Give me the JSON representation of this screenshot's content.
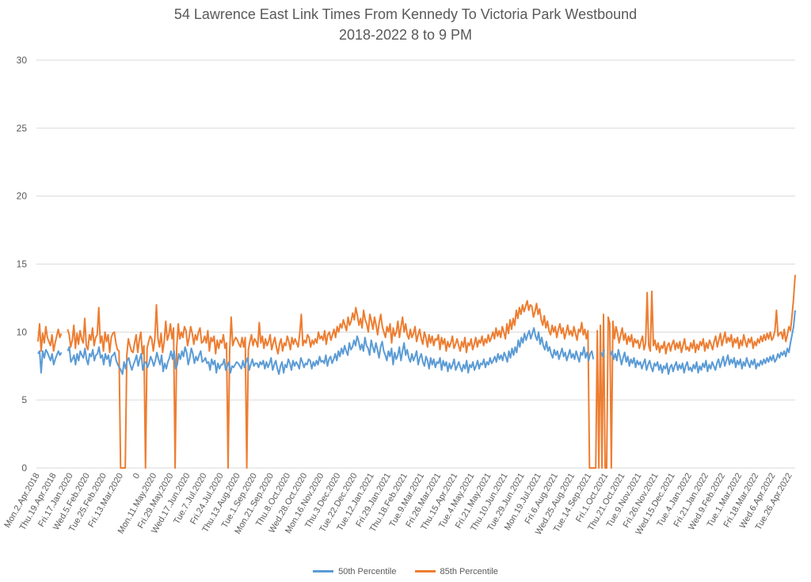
{
  "chart_data": {
    "type": "line",
    "title": "54 Lawrence East Link Times From Kennedy To Victoria Park Westbound",
    "subtitle": "2018-2022 8 to 9 PM",
    "ylim": [
      0,
      30
    ],
    "yticks": [
      0,
      5,
      10,
      15,
      20,
      25,
      30
    ],
    "grid": true,
    "legend_position": "bottom",
    "x_tick_labels": [
      "Mon.2.Apr.2018",
      "Thu.19.Apr.2018",
      "Fri.17.Jan.2020",
      "Wed.5.Feb.2020",
      "Tue.25.Feb.2020",
      "Fri.13.Mar.2020",
      "0",
      "Mon.11.May.2020",
      "Fri.29.May.2020",
      "Wed.17.Jun.2020",
      "Tue.7.Jul.2020",
      "Fri.24.Jul.2020",
      "Thu.13.Aug.2020",
      "Tue.1.Sep.2020",
      "Mon.21.Sep.2020",
      "Thu.8.Oct.2020",
      "Wed.28.Oct.2020",
      "Mon.16.Nov.2020",
      "Thu.3.Dec.2020",
      "Tue.22.Dec.2020",
      "Tue.12.Jan.2021",
      "Fri.29.Jan.2021",
      "Thu.18.Feb.2021",
      "Tue.9.Mar.2021",
      "Fri.26.Mar.2021",
      "Thu.15.Apr.2021",
      "Tue.4.May.2021",
      "Fri.21.May.2021",
      "Thu.10.Jun.2021",
      "Tue.29.Jun.2021",
      "Mon.19.Jul.2021",
      "Fri.6.Aug.2021",
      "Wed.25.Aug.2021",
      "Tue.14.Sep.2021",
      "Fri.1.Oct.2021",
      "Thu.21.Oct.2021",
      "Tue.9.Nov.2021",
      "Fri.26.Nov.2021",
      "Wed.15.Dec.2021",
      "Tue.4.Jan.2022",
      "Fri.21.Jan.2022",
      "Wed.9.Feb.2022",
      "Tue.1.Mar.2022",
      "Fri.18.Mar.2022",
      "Wed.6.Apr.2022",
      "Tue.26.Apr.2022"
    ],
    "colors": {
      "p50": "#5b9bd5",
      "p85": "#ed7d31"
    },
    "series": [
      {
        "name": "50th Percentile",
        "values": [
          8.4,
          8.6,
          7.0,
          8.6,
          8.1,
          8.7,
          8.5,
          8.2,
          7.9,
          8.4,
          7.6,
          8.0,
          8.3,
          8.6,
          8.3,
          8.5,
          null,
          null,
          null,
          8.6,
          8.9,
          7.8,
          8.0,
          8.3,
          7.6,
          8.4,
          7.9,
          8.6,
          8.3,
          8.1,
          8.8,
          8.0,
          7.6,
          8.4,
          8.2,
          8.7,
          7.9,
          8.3,
          8.4,
          8.9,
          8.1,
          8.3,
          7.6,
          8.4,
          8.0,
          8.3,
          7.5,
          8.2,
          8.3,
          8.5,
          7.9,
          7.6,
          7.4,
          7.2,
          6.9,
          7.8,
          7.3,
          7.9,
          8.1,
          7.6,
          7.2,
          7.6,
          7.9,
          8.3,
          7.5,
          8.0,
          8.4,
          7.2,
          7.7,
          7.8,
          7.4,
          7.7,
          8.2,
          7.9,
          7.5,
          7.9,
          8.5,
          8.0,
          7.6,
          8.3,
          7.1,
          7.7,
          7.3,
          7.8,
          8.1,
          8.6,
          8.0,
          8.6,
          7.3,
          7.6,
          8.4,
          8.0,
          8.6,
          8.2,
          8.9,
          8.5,
          7.6,
          8.1,
          8.8,
          8.4,
          7.7,
          8.2,
          7.9,
          8.3,
          8.6,
          7.8,
          7.9,
          8.1,
          7.7,
          7.8,
          7.2,
          8.0,
          7.6,
          7.9,
          7.0,
          7.7,
          7.3,
          7.6,
          7.6,
          8.0,
          7.2,
          7.5,
          7.8,
          7.0,
          7.5,
          7.4,
          7.6,
          7.8,
          7.7,
          7.5,
          7.3,
          7.9,
          7.4,
          7.8,
          8.1,
          7.2,
          7.6,
          8.0,
          7.5,
          7.7,
          7.7,
          7.4,
          7.8,
          7.6,
          7.9,
          7.3,
          7.8,
          7.4,
          7.7,
          8.1,
          7.2,
          7.6,
          7.9,
          7.3,
          6.9,
          7.5,
          7.8,
          7.0,
          7.6,
          7.4,
          8.0,
          7.7,
          7.2,
          7.9,
          7.5,
          7.8,
          7.6,
          7.3,
          8.1,
          7.8,
          7.4,
          7.7,
          7.6,
          8.0,
          7.9,
          7.3,
          7.8,
          7.5,
          7.9,
          7.6,
          8.2,
          7.8,
          7.9,
          7.7,
          8.3,
          7.5,
          8.0,
          8.2,
          7.7,
          8.0,
          8.4,
          7.9,
          8.6,
          8.2,
          8.8,
          8.4,
          9.0,
          8.6,
          8.3,
          9.2,
          8.7,
          8.9,
          9.4,
          9.0,
          9.7,
          9.3,
          8.7,
          9.1,
          8.6,
          9.6,
          9.0,
          8.8,
          8.3,
          9.4,
          8.9,
          8.5,
          9.2,
          8.7,
          8.1,
          8.9,
          9.3,
          8.6,
          8.3,
          7.9,
          8.6,
          8.2,
          8.8,
          7.6,
          8.5,
          8.0,
          8.3,
          8.9,
          7.9,
          8.6,
          9.2,
          8.3,
          8.7,
          8.1,
          7.8,
          8.4,
          7.9,
          8.2,
          8.6,
          7.6,
          8.1,
          8.4,
          7.8,
          7.5,
          8.2,
          7.9,
          7.3,
          8.1,
          7.6,
          8.0,
          7.4,
          7.8,
          7.7,
          8.1,
          7.2,
          7.9,
          7.5,
          7.8,
          7.1,
          7.7,
          7.3,
          7.6,
          8.0,
          7.2,
          7.5,
          7.8,
          7.4,
          7.1,
          7.6,
          7.3,
          7.9,
          7.0,
          7.6,
          7.4,
          7.8,
          7.2,
          7.5,
          7.9,
          7.3,
          7.7,
          7.6,
          8.0,
          7.4,
          7.8,
          7.6,
          8.1,
          7.7,
          7.9,
          8.2,
          7.8,
          8.4,
          8.0,
          8.3,
          7.9,
          8.5,
          8.2,
          7.8,
          8.6,
          8.1,
          8.8,
          8.3,
          8.9,
          8.5,
          9.4,
          8.9,
          9.6,
          9.2,
          9.9,
          9.4,
          9.8,
          10.1,
          9.5,
          9.9,
          10.3,
          9.7,
          9.4,
          10.0,
          9.1,
          9.6,
          9.0,
          8.7,
          9.3,
          8.6,
          8.9,
          8.4,
          8.1,
          8.7,
          8.3,
          8.6,
          8.0,
          8.4,
          8.8,
          8.2,
          8.5,
          7.9,
          8.3,
          8.7,
          8.1,
          8.4,
          8.0,
          8.6,
          8.2,
          7.8,
          8.5,
          8.3,
          8.9,
          8.1,
          8.5,
          7.9,
          8.4,
          8.6,
          8.0,
          null,
          null,
          null,
          null,
          8.5,
          8.2,
          8.7,
          null,
          null,
          null,
          8.3,
          8.6,
          8.0,
          8.4,
          7.9,
          8.7,
          8.2,
          7.6,
          8.1,
          8.5,
          7.8,
          8.2,
          7.5,
          8.0,
          7.7,
          8.1,
          7.4,
          7.9,
          7.6,
          7.8,
          7.3,
          7.7,
          8.0,
          7.2,
          7.6,
          7.9,
          7.4,
          7.1,
          7.7,
          7.5,
          7.8,
          7.2,
          7.6,
          7.0,
          7.5,
          7.3,
          7.7,
          6.9,
          7.4,
          7.6,
          7.1,
          7.5,
          7.8,
          7.2,
          7.6,
          7.3,
          7.7,
          7.0,
          7.5,
          7.8,
          7.2,
          7.4,
          7.1,
          7.6,
          7.3,
          7.8,
          7.0,
          7.5,
          7.2,
          7.7,
          7.4,
          7.9,
          7.1,
          7.6,
          7.3,
          7.8,
          7.5,
          7.2,
          7.7,
          8.0,
          7.4,
          7.8,
          8.2,
          7.5,
          7.9,
          8.3,
          7.6,
          8.0,
          7.7,
          8.1,
          7.4,
          7.9,
          7.6,
          8.0,
          7.3,
          7.8,
          7.5,
          8.1,
          7.7,
          7.4,
          7.9,
          7.6,
          8.0,
          7.3,
          7.7,
          7.5,
          7.9,
          7.6,
          8.0,
          7.7,
          8.1,
          7.8,
          8.2,
          7.9,
          8.3,
          7.8,
          8.0,
          8.4,
          8.1,
          8.5,
          8.3,
          8.6,
          8.2,
          8.8,
          8.5,
          9.2,
          9.8,
          10.4,
          11.6
        ]
      },
      {
        "name": "85th Percentile",
        "values": [
          9.3,
          10.6,
          8.6,
          9.9,
          9.2,
          10.4,
          9.6,
          9.3,
          9.0,
          9.8,
          8.6,
          9.2,
          9.7,
          10.2,
          9.6,
          9.9,
          null,
          null,
          null,
          10.2,
          9.8,
          8.9,
          9.4,
          10.5,
          8.8,
          9.9,
          9.1,
          10.1,
          9.5,
          9.2,
          11.0,
          9.0,
          8.7,
          9.8,
          9.4,
          10.3,
          9.0,
          9.6,
          9.8,
          11.8,
          9.2,
          9.7,
          8.6,
          10.0,
          9.3,
          9.8,
          8.5,
          9.6,
          9.9,
          10.0,
          9.2,
          8.7,
          8.6,
          0,
          0,
          0,
          0,
          8.3,
          9.5,
          9.0,
          8.6,
          8.5,
          9.2,
          9.8,
          8.5,
          9.4,
          10.0,
          8.4,
          9.0,
          0,
          8.8,
          9.3,
          9.7,
          9.5,
          8.6,
          9.5,
          12.0,
          9.5,
          8.9,
          9.9,
          8.5,
          9.3,
          10.8,
          9.4,
          9.8,
          10.6,
          9.5,
          10.3,
          0,
          8.8,
          10.6,
          9.5,
          10.0,
          9.6,
          10.4,
          10.1,
          9.0,
          9.6,
          10.4,
          9.9,
          9.1,
          9.8,
          9.4,
          10.0,
          10.3,
          9.2,
          9.3,
          9.7,
          9.2,
          10.1,
          8.6,
          9.6,
          9.3,
          9.7,
          8.4,
          9.4,
          8.8,
          9.4,
          9.2,
          9.8,
          8.8,
          9.2,
          0,
          8.6,
          11.1,
          9.0,
          9.4,
          9.6,
          9.4,
          9.1,
          8.9,
          9.6,
          8.9,
          9.6,
          0,
          8.7,
          9.3,
          9.8,
          9.0,
          9.5,
          9.3,
          8.9,
          10.7,
          9.2,
          9.7,
          8.8,
          9.5,
          9.0,
          9.3,
          9.8,
          8.7,
          9.2,
          9.6,
          8.9,
          8.4,
          9.1,
          9.5,
          8.6,
          9.2,
          9.0,
          9.7,
          9.3,
          8.7,
          9.6,
          9.1,
          9.5,
          9.2,
          8.9,
          9.9,
          11.3,
          9.0,
          9.4,
          9.2,
          9.8,
          9.6,
          8.9,
          9.4,
          9.1,
          9.5,
          9.2,
          10.0,
          9.5,
          9.7,
          9.4,
          10.1,
          9.1,
          9.8,
          10.0,
          9.4,
          9.8,
          10.2,
          9.6,
          10.4,
          10.0,
          10.6,
          10.3,
          10.9,
          10.5,
          10.1,
          11.1,
          10.5,
          10.8,
          11.4,
          10.9,
          11.8,
          11.2,
          10.5,
          11.0,
          10.3,
          11.6,
          10.9,
          10.6,
          10.0,
          11.3,
          10.8,
          10.2,
          11.1,
          10.5,
          9.8,
          10.7,
          11.3,
          10.4,
          10.0,
          9.6,
          10.4,
          10.0,
          10.6,
          9.2,
          10.3,
          9.7,
          10.0,
          10.8,
          9.6,
          10.4,
          11.1,
          10.0,
          10.6,
          9.8,
          9.5,
          10.2,
          9.6,
          9.9,
          10.4,
          9.3,
          9.8,
          10.2,
          9.5,
          9.1,
          10.0,
          9.6,
          8.9,
          9.8,
          9.2,
          9.7,
          9.0,
          9.5,
          9.4,
          9.8,
          8.7,
          9.6,
          9.1,
          9.5,
          8.6,
          9.3,
          8.9,
          9.2,
          9.7,
          8.8,
          9.1,
          9.5,
          9.0,
          8.6,
          9.3,
          8.9,
          9.6,
          8.5,
          9.2,
          9.0,
          9.5,
          8.7,
          9.1,
          9.6,
          8.9,
          9.4,
          9.2,
          9.7,
          9.0,
          9.5,
          9.2,
          9.8,
          9.3,
          9.6,
          10.0,
          9.5,
          10.3,
          9.7,
          10.1,
          9.6,
          10.4,
          10.0,
          9.5,
          10.6,
          9.9,
          10.9,
          10.2,
          11.0,
          10.5,
          11.6,
          11.0,
          11.8,
          11.3,
          12.0,
          11.5,
          11.9,
          12.3,
          11.6,
          12.0,
          11.9,
          11.1,
          11.5,
          12.1,
          11.3,
          11.7,
          10.9,
          10.5,
          11.2,
          10.3,
          10.8,
          10.1,
          9.8,
          10.5,
          10.0,
          10.4,
          9.6,
          10.2,
          10.6,
          9.9,
          10.3,
          9.5,
          10.0,
          10.5,
          9.8,
          10.1,
          9.7,
          10.4,
          9.9,
          9.4,
          10.2,
          10.0,
          10.7,
          9.8,
          10.2,
          9.5,
          10.1,
          0,
          0,
          0,
          0,
          0,
          10.1,
          0,
          10.5,
          0,
          11.3,
          0,
          0,
          11.1,
          10.6,
          0,
          10.8,
          9.5,
          10.4,
          9.9,
          9.2,
          9.8,
          10.3,
          9.4,
          9.9,
          9.1,
          9.7,
          9.3,
          9.8,
          8.9,
          9.5,
          9.2,
          9.4,
          8.8,
          9.3,
          9.7,
          8.7,
          9.2,
          12.9,
          9.0,
          8.6,
          13.0,
          9.0,
          9.4,
          8.7,
          9.2,
          8.5,
          9.0,
          8.8,
          9.3,
          8.4,
          9.0,
          9.2,
          8.6,
          9.1,
          9.4,
          8.7,
          9.2,
          8.8,
          9.3,
          8.5,
          9.0,
          9.5,
          8.7,
          8.9,
          8.6,
          9.2,
          8.8,
          9.4,
          8.5,
          9.1,
          8.7,
          9.3,
          9.0,
          9.5,
          8.6,
          9.2,
          8.8,
          9.4,
          9.1,
          8.7,
          9.3,
          9.7,
          8.9,
          9.4,
          9.9,
          9.0,
          9.5,
          10.0,
          9.2,
          9.6,
          9.3,
          9.8,
          8.9,
          9.5,
          9.2,
          9.6,
          8.8,
          9.4,
          9.0,
          9.8,
          9.3,
          8.9,
          9.5,
          9.2,
          9.6,
          8.8,
          9.3,
          9.0,
          9.5,
          9.2,
          9.7,
          9.3,
          9.8,
          9.4,
          9.9,
          9.5,
          10.0,
          9.4,
          9.6,
          10.1,
          11.6,
          9.7,
          9.9,
          10.0,
          9.5,
          10.2,
          9.3,
          9.8,
          10.4,
          10.1,
          11.2,
          12.5,
          14.2
        ]
      }
    ]
  }
}
